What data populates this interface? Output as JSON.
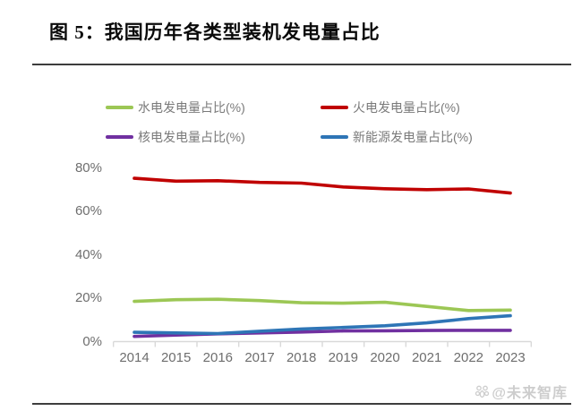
{
  "title": "图 5：我国历年各类型装机发电量占比",
  "watermark": {
    "icon": "paw-flower-icon",
    "text": "@未来智库"
  },
  "chart_data": {
    "type": "line",
    "title": "图 5：我国历年各类型装机发电量占比",
    "categories": [
      "2014",
      "2015",
      "2016",
      "2017",
      "2018",
      "2019",
      "2020",
      "2021",
      "2022",
      "2023"
    ],
    "series": [
      {
        "key": "hydro",
        "name": "水电发电量占比(%)",
        "color": "#9CC755",
        "values": [
          18.5,
          19.3,
          19.5,
          18.9,
          17.9,
          17.7,
          18.1,
          16.2,
          14.3,
          14.5
        ]
      },
      {
        "key": "thermal",
        "name": "火电发电量占比(%)",
        "color": "#C00000",
        "values": [
          75.2,
          73.9,
          74.1,
          73.3,
          73.0,
          71.2,
          70.4,
          70.0,
          70.3,
          68.4
        ]
      },
      {
        "key": "nuclear",
        "name": "核电发电量占比(%)",
        "color": "#7030A0",
        "values": [
          2.4,
          3.0,
          3.6,
          4.0,
          4.4,
          4.9,
          5.0,
          5.1,
          5.2,
          5.2
        ]
      },
      {
        "key": "new-energy",
        "name": "新能源发电量占比(%)",
        "color": "#2E75B6",
        "values": [
          4.3,
          4.0,
          3.7,
          4.8,
          5.8,
          6.5,
          7.3,
          8.6,
          10.6,
          11.9
        ]
      }
    ],
    "y_ticks": [
      {
        "label": "0%",
        "value": 0
      },
      {
        "label": "20%",
        "value": 20
      },
      {
        "label": "40%",
        "value": 40
      },
      {
        "label": "60%",
        "value": 60
      },
      {
        "label": "80%",
        "value": 80
      }
    ],
    "ylim": [
      0,
      80
    ],
    "xlabel": "",
    "ylabel": "",
    "grid": false,
    "legend_position": "top",
    "axis_color": "#d9d9d9"
  }
}
